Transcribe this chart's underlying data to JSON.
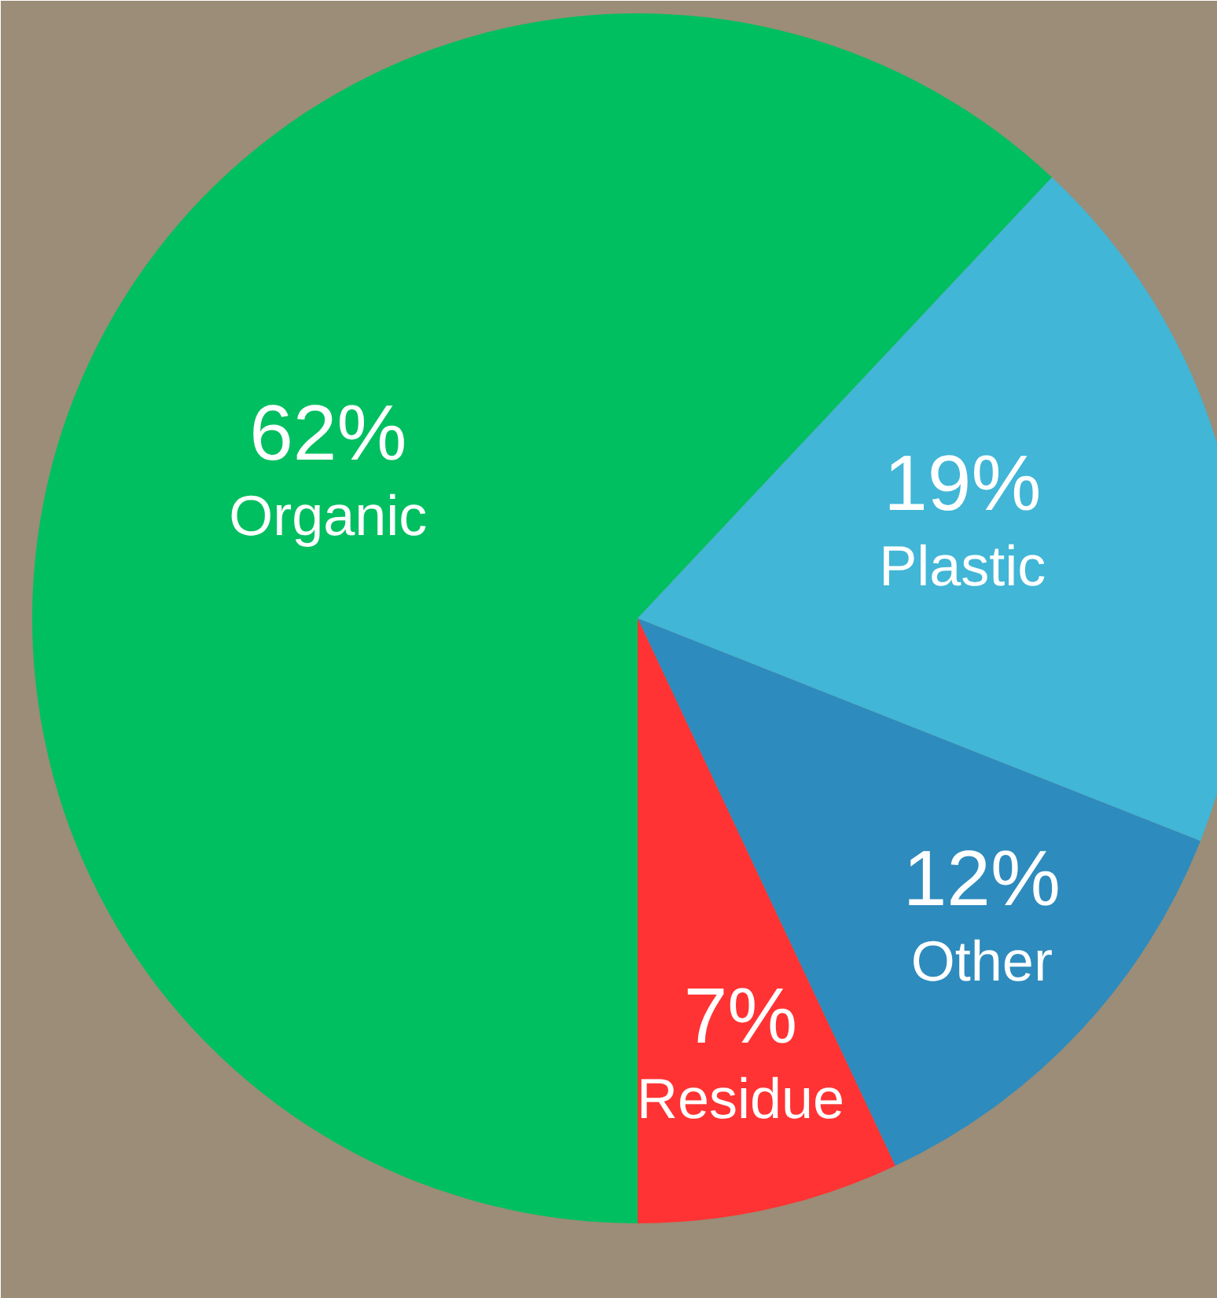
{
  "chart_data": {
    "type": "pie",
    "categories": [
      "Organic",
      "Plastic",
      "Other",
      "Residue"
    ],
    "values": [
      62,
      19,
      12,
      7
    ],
    "colors": [
      "#00bf60",
      "#41b6d6",
      "#2e8bbd",
      "#ff3333"
    ],
    "value_labels": [
      "62%",
      "19%",
      "12%",
      "7%"
    ]
  }
}
